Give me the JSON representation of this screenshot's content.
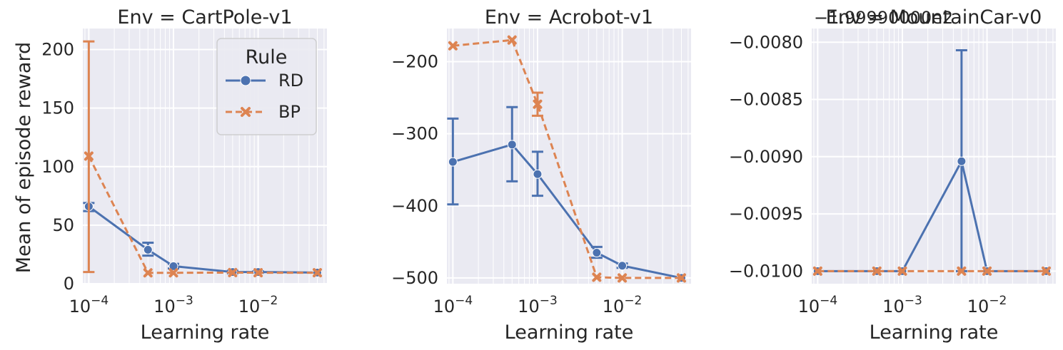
{
  "figure": {
    "ylabel": "Mean of episode reward",
    "legend": {
      "title": "Rule",
      "placement": "top-right of first panel"
    }
  },
  "colors": {
    "background": "#eaeaf2",
    "grid": "#ffffff",
    "RD": "#4c72b0",
    "BP": "#dd8452",
    "text": "#262626"
  },
  "chart_data": [
    {
      "type": "line",
      "title": "Env = CartPole-v1",
      "xlabel": "Learning rate",
      "ylabel": "Mean of episode reward",
      "xscale": "log",
      "x": [
        0.0001,
        0.0005,
        0.001,
        0.005,
        0.01,
        0.05
      ],
      "xticks": [
        0.0001,
        0.001,
        0.01
      ],
      "xtick_labels": [
        [
          "10",
          "−4"
        ],
        [
          "10",
          "−3"
        ],
        [
          "10",
          "−2"
        ]
      ],
      "xlim": [
        8.5e-05,
        0.065
      ],
      "ylim": [
        0,
        218
      ],
      "yticks": [
        0,
        50,
        100,
        150,
        200
      ],
      "ytick_labels": [
        "0",
        "50",
        "100",
        "150",
        "200"
      ],
      "grid": true,
      "legend": true,
      "series": [
        {
          "name": "RD",
          "marker": "circle",
          "dash": "solid",
          "values": [
            66,
            29,
            15,
            10,
            10,
            9.5
          ],
          "err_low": [
            62,
            24,
            13,
            9,
            9.4,
            9.3
          ],
          "err_high": [
            69,
            35,
            17,
            11,
            10.6,
            9.7
          ]
        },
        {
          "name": "BP",
          "marker": "x",
          "dash": "dashed",
          "values": [
            109,
            9.3,
            9.3,
            9.5,
            9.4,
            9.4
          ],
          "err_low": [
            10,
            9.1,
            9.1,
            9.3,
            9.2,
            9.2
          ],
          "err_high": [
            207,
            9.5,
            9.5,
            9.7,
            9.6,
            9.6
          ]
        }
      ]
    },
    {
      "type": "line",
      "title": "Env = Acrobot-v1",
      "xlabel": "Learning rate",
      "ylabel": "",
      "xscale": "log",
      "x": [
        0.0001,
        0.0005,
        0.001,
        0.005,
        0.01,
        0.05
      ],
      "xticks": [
        0.0001,
        0.001,
        0.01
      ],
      "xtick_labels": [
        [
          "10",
          "−4"
        ],
        [
          "10",
          "−3"
        ],
        [
          "10",
          "−2"
        ]
      ],
      "xlim": [
        8.5e-05,
        0.065
      ],
      "ylim": [
        -508,
        -154
      ],
      "yticks": [
        -200,
        -300,
        -400,
        -500
      ],
      "ytick_labels": [
        "−200",
        "−300",
        "−400",
        "−500"
      ],
      "grid": true,
      "legend": false,
      "series": [
        {
          "name": "RD",
          "marker": "circle",
          "dash": "solid",
          "values": [
            -339,
            -315,
            -356,
            -465,
            -483,
            -500
          ],
          "err_low": [
            -398,
            -366,
            -386,
            -472,
            -486,
            -500
          ],
          "err_high": [
            -279,
            -263,
            -325,
            -457,
            -480,
            -500
          ]
        },
        {
          "name": "BP",
          "marker": "x",
          "dash": "dashed",
          "values": [
            -178,
            -170,
            -259,
            -499,
            -500,
            -500
          ],
          "err_low": [
            -178,
            -170,
            -275,
            -499,
            -500,
            -500
          ],
          "err_high": [
            -178,
            -170,
            -243,
            -499,
            -500,
            -500
          ]
        }
      ]
    },
    {
      "type": "line",
      "title": "Env = MountainCar-v0",
      "offset_text": "−1.99990000e2",
      "xlabel": "Learning rate",
      "ylabel": "",
      "xscale": "log",
      "x": [
        0.0001,
        0.0005,
        0.001,
        0.005,
        0.01,
        0.05
      ],
      "xticks": [
        0.0001,
        0.001,
        0.01
      ],
      "xtick_labels": [
        [
          "10",
          "−4"
        ],
        [
          "10",
          "−3"
        ],
        [
          "10",
          "−2"
        ]
      ],
      "xlim": [
        8.5e-05,
        0.065
      ],
      "ylim": [
        -0.01011,
        -0.00788
      ],
      "yticks": [
        -0.008,
        -0.0085,
        -0.009,
        -0.0095,
        -0.01
      ],
      "ytick_labels": [
        "−0.0080",
        "−0.0085",
        "−0.0090",
        "−0.0095",
        "−0.0100"
      ],
      "grid": true,
      "legend": false,
      "series": [
        {
          "name": "RD",
          "marker": "circle",
          "dash": "solid",
          "values": [
            -0.01,
            -0.01,
            -0.01,
            -0.00904,
            -0.01,
            -0.01
          ],
          "err_low": [
            -0.01,
            -0.01,
            -0.01,
            -0.01,
            -0.01,
            -0.01
          ],
          "err_high": [
            -0.01,
            -0.01,
            -0.01,
            -0.00807,
            -0.01,
            -0.01
          ]
        },
        {
          "name": "BP",
          "marker": "x",
          "dash": "dashed",
          "values": [
            -0.01,
            -0.01,
            -0.01,
            -0.01,
            -0.01,
            -0.01
          ],
          "err_low": [
            -0.01,
            -0.01,
            -0.01,
            -0.01,
            -0.01,
            -0.01
          ],
          "err_high": [
            -0.01,
            -0.01,
            -0.01,
            -0.01,
            -0.01,
            -0.01
          ]
        }
      ]
    }
  ]
}
